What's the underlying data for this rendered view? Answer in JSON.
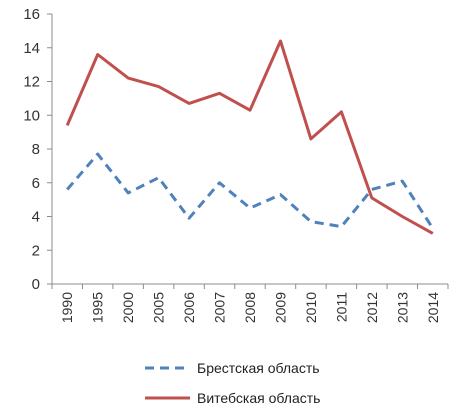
{
  "chart_data": {
    "type": "line",
    "title": "",
    "xlabel": "",
    "ylabel": "",
    "ylim": [
      0,
      16
    ],
    "yticks": [
      0,
      2,
      4,
      6,
      8,
      10,
      12,
      14,
      16
    ],
    "grid": false,
    "legend_position": "bottom",
    "categories": [
      "1990",
      "1995",
      "2000",
      "2005",
      "2006",
      "2007",
      "2008",
      "2009",
      "2010",
      "2011",
      "2012",
      "2013",
      "2014"
    ],
    "series": [
      {
        "name": "Брестская область",
        "color": "#4f81bd",
        "dash": "dashed",
        "values": [
          5.6,
          7.7,
          5.4,
          6.3,
          3.9,
          6.0,
          4.5,
          5.3,
          3.7,
          3.4,
          5.6,
          6.1,
          3.3
        ]
      },
      {
        "name": "Витебская область",
        "color": "#c0504d",
        "dash": "solid",
        "values": [
          9.4,
          13.6,
          12.2,
          11.7,
          10.7,
          11.3,
          10.3,
          14.4,
          8.6,
          10.2,
          5.1,
          4.0,
          3.0
        ]
      }
    ]
  }
}
